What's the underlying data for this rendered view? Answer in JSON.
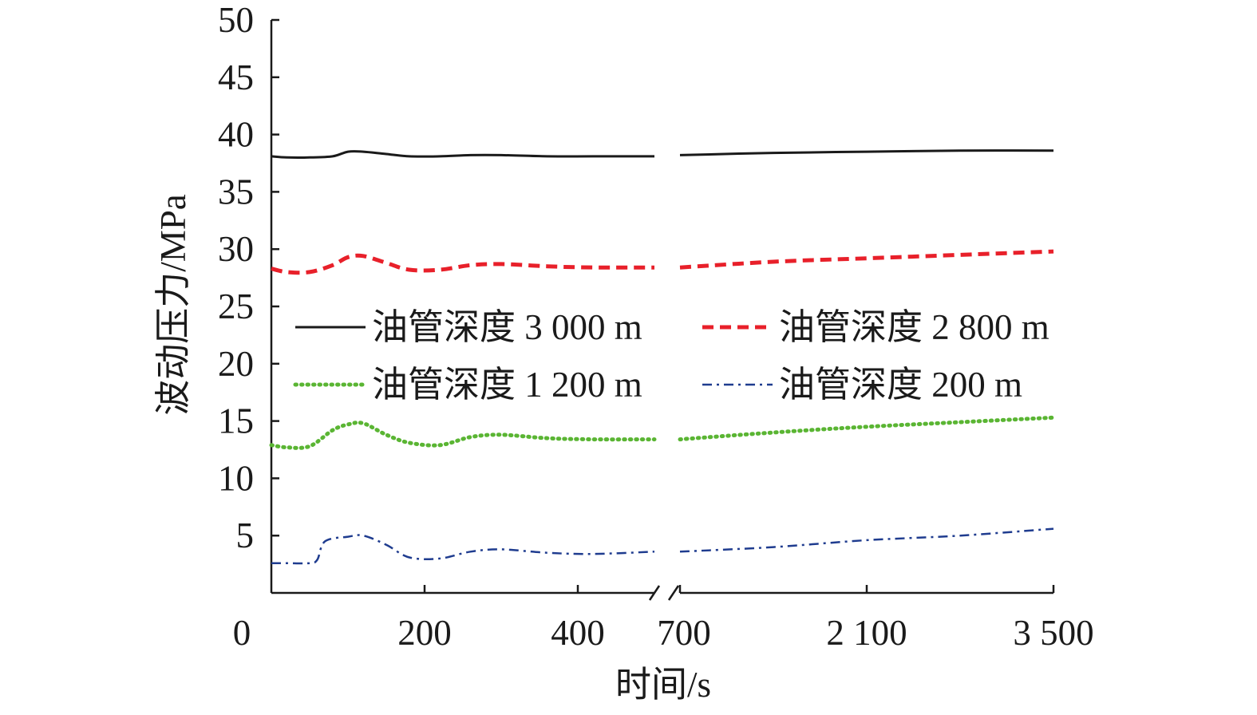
{
  "chart_data": {
    "type": "line",
    "xlabel": "时间/s",
    "ylabel": "波动压力/MPa",
    "ylim": [
      0,
      50
    ],
    "yticks": [
      "5",
      "10",
      "15",
      "20",
      "25",
      "30",
      "35",
      "40",
      "45",
      "50"
    ],
    "x_segments": [
      {
        "range": [
          0,
          500
        ],
        "tick_labels": [
          "0",
          "200",
          "400"
        ]
      },
      {
        "range": [
          700,
          3500
        ],
        "tick_labels": [
          "700",
          "2 100",
          "3 500"
        ]
      }
    ],
    "axis_break": "between 500 and 700",
    "grid": false,
    "legend_position": "center",
    "series": [
      {
        "name": "油管深度 3 000 m",
        "color": "#1a1a1a",
        "style": "solid",
        "points": [
          [
            0,
            38.1
          ],
          [
            20,
            38.0
          ],
          [
            50,
            38.0
          ],
          [
            80,
            38.1
          ],
          [
            100,
            38.5
          ],
          [
            120,
            38.5
          ],
          [
            150,
            38.3
          ],
          [
            180,
            38.1
          ],
          [
            220,
            38.1
          ],
          [
            260,
            38.2
          ],
          [
            300,
            38.2
          ],
          [
            360,
            38.1
          ],
          [
            420,
            38.1
          ],
          [
            500,
            38.1
          ],
          [
            700,
            38.2
          ],
          [
            1400,
            38.4
          ],
          [
            2100,
            38.5
          ],
          [
            2800,
            38.6
          ],
          [
            3500,
            38.6
          ]
        ]
      },
      {
        "name": "油管深度 2 800 m",
        "color": "#e8202a",
        "style": "dashed",
        "points": [
          [
            0,
            28.3
          ],
          [
            20,
            28.0
          ],
          [
            50,
            28.0
          ],
          [
            80,
            28.6
          ],
          [
            100,
            29.3
          ],
          [
            120,
            29.4
          ],
          [
            150,
            28.8
          ],
          [
            180,
            28.2
          ],
          [
            220,
            28.2
          ],
          [
            260,
            28.6
          ],
          [
            300,
            28.7
          ],
          [
            360,
            28.5
          ],
          [
            420,
            28.4
          ],
          [
            500,
            28.4
          ],
          [
            700,
            28.4
          ],
          [
            1400,
            28.9
          ],
          [
            2100,
            29.2
          ],
          [
            2800,
            29.5
          ],
          [
            3500,
            29.8
          ]
        ]
      },
      {
        "name": "油管深度 1 200 m",
        "color": "#5ab533",
        "style": "dotted",
        "points": [
          [
            0,
            12.9
          ],
          [
            20,
            12.7
          ],
          [
            50,
            12.8
          ],
          [
            80,
            14.2
          ],
          [
            100,
            14.7
          ],
          [
            120,
            14.8
          ],
          [
            150,
            13.8
          ],
          [
            180,
            13.1
          ],
          [
            220,
            12.9
          ],
          [
            260,
            13.6
          ],
          [
            300,
            13.8
          ],
          [
            360,
            13.5
          ],
          [
            420,
            13.4
          ],
          [
            500,
            13.4
          ],
          [
            700,
            13.4
          ],
          [
            1400,
            14.0
          ],
          [
            2100,
            14.5
          ],
          [
            2800,
            14.9
          ],
          [
            3500,
            15.3
          ]
        ]
      },
      {
        "name": "油管深度 200 m",
        "color": "#1f3c8f",
        "style": "dashdot",
        "points": [
          [
            0,
            2.6
          ],
          [
            20,
            2.6
          ],
          [
            50,
            2.6
          ],
          [
            60,
            2.9
          ],
          [
            70,
            4.5
          ],
          [
            100,
            4.9
          ],
          [
            120,
            5.0
          ],
          [
            150,
            4.2
          ],
          [
            180,
            3.1
          ],
          [
            220,
            3.0
          ],
          [
            260,
            3.6
          ],
          [
            300,
            3.8
          ],
          [
            360,
            3.5
          ],
          [
            420,
            3.4
          ],
          [
            500,
            3.6
          ],
          [
            700,
            3.6
          ],
          [
            1400,
            4.0
          ],
          [
            2100,
            4.6
          ],
          [
            2800,
            5.0
          ],
          [
            3500,
            5.6
          ]
        ]
      }
    ]
  }
}
